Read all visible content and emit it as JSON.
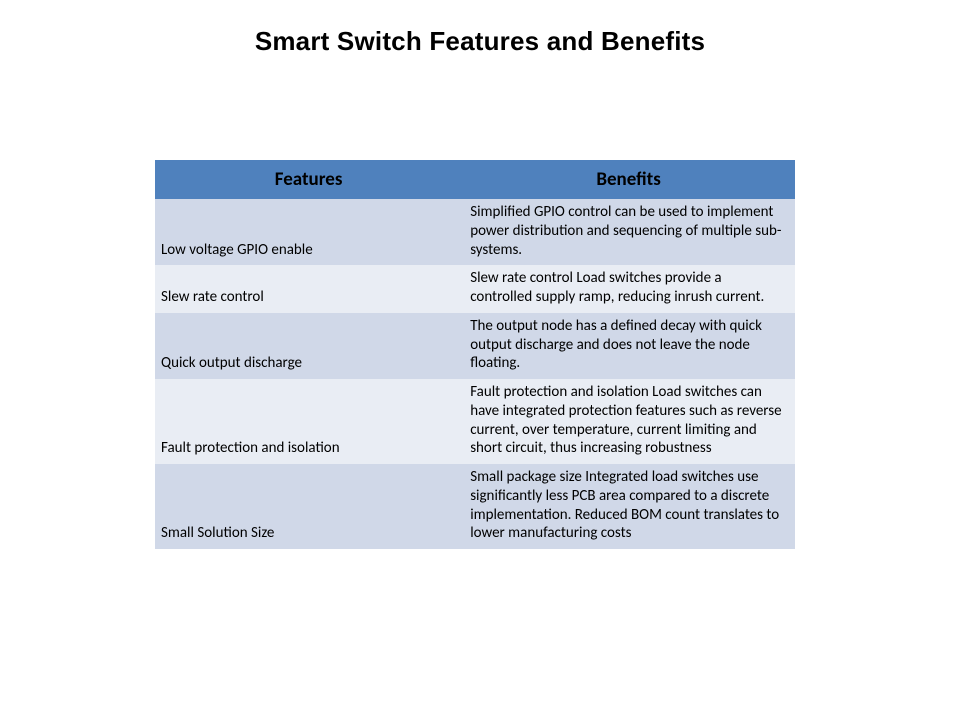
{
  "title": "Smart Switch Features and Benefits",
  "table": {
    "type": "table",
    "columns": [
      "Features",
      "Benefits"
    ],
    "rows": [
      [
        "Low voltage GPIO enable",
        "Simplified GPIO control can be used to implement power distribution and sequencing of multiple sub-systems."
      ],
      [
        "Slew rate control",
        "Slew rate control Load switches provide a controlled supply ramp, reducing inrush current."
      ],
      [
        "Quick output discharge",
        "The output node has a defined decay with quick output discharge and does not leave the node floating."
      ],
      [
        "Fault protection and isolation",
        "Fault protection and isolation Load switches can have integrated protection features such as reverse current,  over temperature, current limiting and short circuit, thus increasing robustness"
      ],
      [
        "Small Solution Size",
        "Small package size Integrated load switches use significantly less PCB area compared to a discrete implementation. Reduced BOM count translates to lower manufacturing costs"
      ]
    ],
    "header_bg": "#4f81bd",
    "header_text_color": "#000000",
    "row_bg_odd": "#d0d8e8",
    "row_bg_even": "#e9edf4",
    "text_color": "#000000",
    "header_fontsize": 19,
    "body_fontsize": 15,
    "col_widths_pct": [
      48,
      52
    ],
    "background_color": "#ffffff"
  }
}
